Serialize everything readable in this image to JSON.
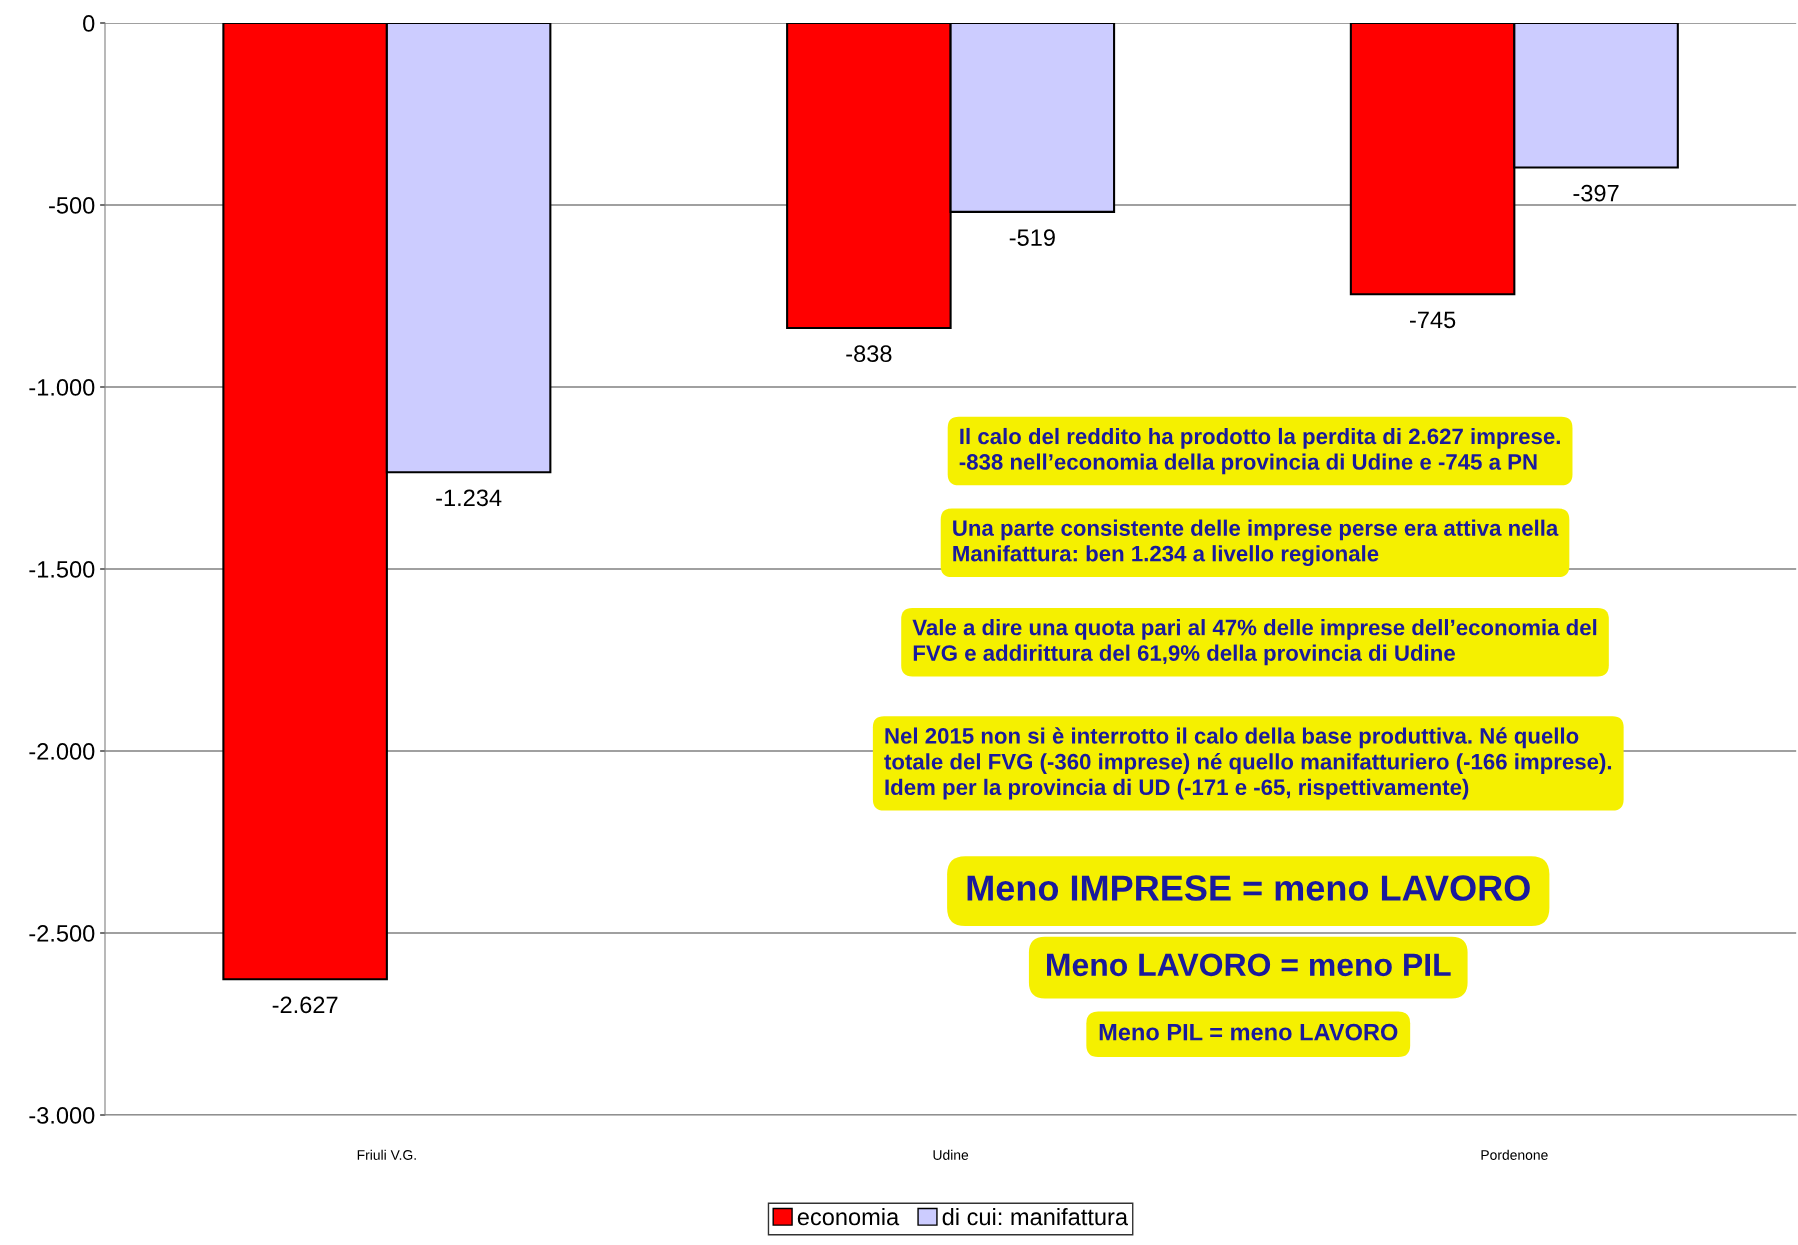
{
  "chart_data": {
    "type": "bar",
    "categories": [
      "Friuli V.G.",
      "Udine",
      "Pordenone"
    ],
    "series": [
      {
        "name": "economia",
        "color": "#ff0000",
        "values": [
          -2627,
          -838,
          -745
        ],
        "value_labels": [
          "-2.627",
          "-838",
          "-745"
        ]
      },
      {
        "name": "di cui: manifattura",
        "color": "#ccccff",
        "values": [
          -1234,
          -519,
          -397
        ],
        "value_labels": [
          "-1.234",
          "-519",
          "-397"
        ]
      }
    ],
    "ylim": [
      -3000,
      0
    ],
    "yticks": [
      {
        "value": -3000,
        "label": "-3.000"
      },
      {
        "value": -2500,
        "label": "-2.500"
      },
      {
        "value": -2000,
        "label": "-2.000"
      },
      {
        "value": -1500,
        "label": "-1.500"
      },
      {
        "value": -1000,
        "label": "-1.000"
      },
      -500,
      0
    ],
    "grid": "y",
    "legend": "bottom",
    "annotations": [
      "Il calo del reddito ha prodotto la perdita di 2.627 imprese.\n-838 nell’economia della provincia di Udine e -745 a PN",
      "Una parte consistente delle imprese perse era attiva nella\nManifattura: ben 1.234 a livello regionale",
      "Vale a dire una quota pari al 47% delle imprese dell’economia del\nFVG e addirittura del 61,9% della provincia di Udine",
      "Nel 2015 non si è interrotto il calo della base produttiva. Né quello\ntotale del FVG (-360 imprese) né quello manifatturiero (-166 imprese).\nIdem per la provincia di UD (-171 e -65, rispettivamente)",
      "Meno IMPRESE = meno LAVORO",
      "Meno LAVORO = meno PIL",
      "Meno PIL = meno LAVORO"
    ]
  }
}
